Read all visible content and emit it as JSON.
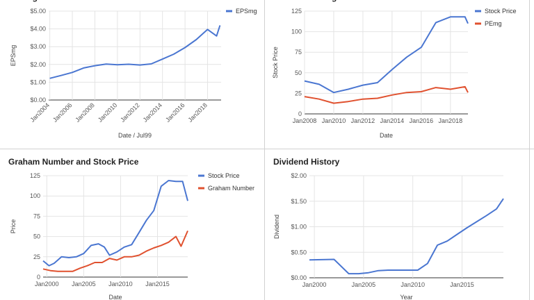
{
  "colors": {
    "blue": "#4a76d1",
    "red": "#e0512f",
    "grid": "#e4e4e4",
    "baseline": "#333333"
  },
  "chart_data": [
    {
      "id": "c1",
      "type": "line",
      "title": "EPSmg",
      "xlabel": "Date / Jul99",
      "ylabel": "EPSmg",
      "xlim": [
        2003.9,
        2019.2
      ],
      "ylim": [
        0,
        5
      ],
      "yticks": [
        0,
        1,
        2,
        3,
        4,
        5
      ],
      "ytick_labels": [
        "$0.00",
        "$1.00",
        "$2.00",
        "$3.00",
        "$4.00",
        "$5.00"
      ],
      "xticks": [
        2004,
        2006,
        2008,
        2010,
        2012,
        2014,
        2016,
        2018
      ],
      "xtick_labels": [
        "Jan2004",
        "Jan2006",
        "Jan2008",
        "Jan2010",
        "Jan2012",
        "Jan2014",
        "Jan2016",
        "Jan2018"
      ],
      "xtick_rotate": true,
      "legend_position": "top-right",
      "series": [
        {
          "name": "EPSmg",
          "color": "#4a76d1",
          "x": [
            2004,
            2005,
            2006,
            2007,
            2008,
            2009,
            2010,
            2011,
            2012,
            2013,
            2014,
            2015,
            2016,
            2017,
            2018,
            2018.8,
            2019.1
          ],
          "y": [
            1.22,
            1.38,
            1.55,
            1.8,
            1.93,
            2.02,
            1.98,
            2.01,
            1.97,
            2.03,
            2.3,
            2.58,
            2.95,
            3.4,
            3.97,
            3.6,
            4.2
          ]
        }
      ]
    },
    {
      "id": "c2",
      "type": "line",
      "title": "Price and PEmg",
      "xlabel": "Date",
      "ylabel": "Stock Price",
      "xlim": [
        2008,
        2019.2
      ],
      "ylim": [
        0,
        125
      ],
      "yticks": [
        0,
        25,
        50,
        75,
        100,
        125
      ],
      "ytick_labels": [
        "0",
        "25",
        "50",
        "75",
        "100",
        "125"
      ],
      "xticks": [
        2008,
        2010,
        2012,
        2014,
        2016,
        2018
      ],
      "xtick_labels": [
        "Jan2008",
        "Jan2010",
        "Jan2012",
        "Jan2014",
        "Jan2016",
        "Jan2018"
      ],
      "xtick_rotate": false,
      "legend_position": "top-right",
      "series": [
        {
          "name": "Stock Price",
          "color": "#4a76d1",
          "x": [
            2008,
            2009,
            2010,
            2011,
            2012,
            2013,
            2014,
            2015,
            2016,
            2017,
            2018,
            2019,
            2019.2
          ],
          "y": [
            40,
            36,
            26,
            30,
            35,
            38,
            54,
            69,
            81,
            111,
            118,
            118,
            110
          ]
        },
        {
          "name": "PEmg",
          "color": "#e0512f",
          "x": [
            2008,
            2009,
            2010,
            2011,
            2012,
            2013,
            2014,
            2015,
            2016,
            2017,
            2018,
            2019,
            2019.2
          ],
          "y": [
            21,
            18,
            13,
            15,
            18,
            19,
            23,
            26,
            27,
            32,
            30,
            33,
            26
          ]
        }
      ]
    },
    {
      "id": "c3",
      "type": "line",
      "title": "Graham Number and Stock Price",
      "xlabel": "Date",
      "ylabel": "Price",
      "xlim": [
        1999.5,
        2019.1
      ],
      "ylim": [
        0,
        125
      ],
      "yticks": [
        0,
        25,
        50,
        75,
        100,
        125
      ],
      "ytick_labels": [
        "0",
        "25",
        "50",
        "75",
        "100",
        "125"
      ],
      "xticks": [
        2000,
        2005,
        2010,
        2015
      ],
      "xtick_labels": [
        "Jan2000",
        "Jan2005",
        "Jan2010",
        "Jan2015"
      ],
      "xtick_rotate": false,
      "legend_position": "top-right",
      "series": [
        {
          "name": "Stock Price",
          "color": "#4a76d1",
          "x": [
            1999.5,
            2000.3,
            2001,
            2002,
            2003,
            2004,
            2005,
            2006,
            2007,
            2007.8,
            2008.5,
            2009.5,
            2010.5,
            2011.5,
            2012.5,
            2013.5,
            2014.5,
            2015.5,
            2016.5,
            2017.5,
            2018.4,
            2019.1
          ],
          "y": [
            20,
            14,
            17,
            25,
            24,
            25,
            29,
            39,
            41,
            37,
            27,
            31,
            37,
            40,
            55,
            70,
            82,
            112,
            119,
            118,
            118,
            94
          ]
        },
        {
          "name": "Graham Number",
          "color": "#e0512f",
          "x": [
            1999.5,
            2000.5,
            2001.5,
            2002.5,
            2003.5,
            2004.5,
            2005.5,
            2006.5,
            2007.5,
            2008.5,
            2009.5,
            2010.5,
            2011.5,
            2012.5,
            2013.5,
            2014.5,
            2015.5,
            2016.5,
            2017.5,
            2018.2,
            2019.1
          ],
          "y": [
            10,
            8,
            7,
            7,
            7,
            11,
            14,
            18,
            18,
            23,
            21,
            25,
            25,
            27,
            32,
            36,
            39,
            43,
            50,
            38,
            57
          ]
        }
      ]
    },
    {
      "id": "c4",
      "type": "line",
      "title": "Dividend History",
      "xlabel": "Year",
      "ylabel": "Dividend",
      "xlim": [
        1999.5,
        2019.2
      ],
      "ylim": [
        0,
        2
      ],
      "yticks": [
        0,
        0.5,
        1,
        1.5,
        2
      ],
      "ytick_labels": [
        "$0.00",
        "$0.50",
        "$1.00",
        "$1.50",
        "$2.00"
      ],
      "xticks": [
        2000,
        2005,
        2010,
        2015
      ],
      "xtick_labels": [
        "Jan2000",
        "Jan2005",
        "Jan2010",
        "Jan2015"
      ],
      "xtick_rotate": false,
      "legend_position": "none",
      "series": [
        {
          "name": "Dividend",
          "color": "#4a76d1",
          "x": [
            1999.5,
            2002,
            2003.5,
            2004.5,
            2005.5,
            2006.5,
            2007.5,
            2009,
            2010.5,
            2011.5,
            2012.5,
            2013.5,
            2014.5,
            2015.5,
            2016.5,
            2017.5,
            2018.5,
            2019.2
          ],
          "y": [
            0.35,
            0.36,
            0.08,
            0.08,
            0.1,
            0.14,
            0.15,
            0.15,
            0.15,
            0.28,
            0.64,
            0.72,
            0.85,
            0.98,
            1.1,
            1.22,
            1.35,
            1.55
          ]
        }
      ]
    }
  ]
}
